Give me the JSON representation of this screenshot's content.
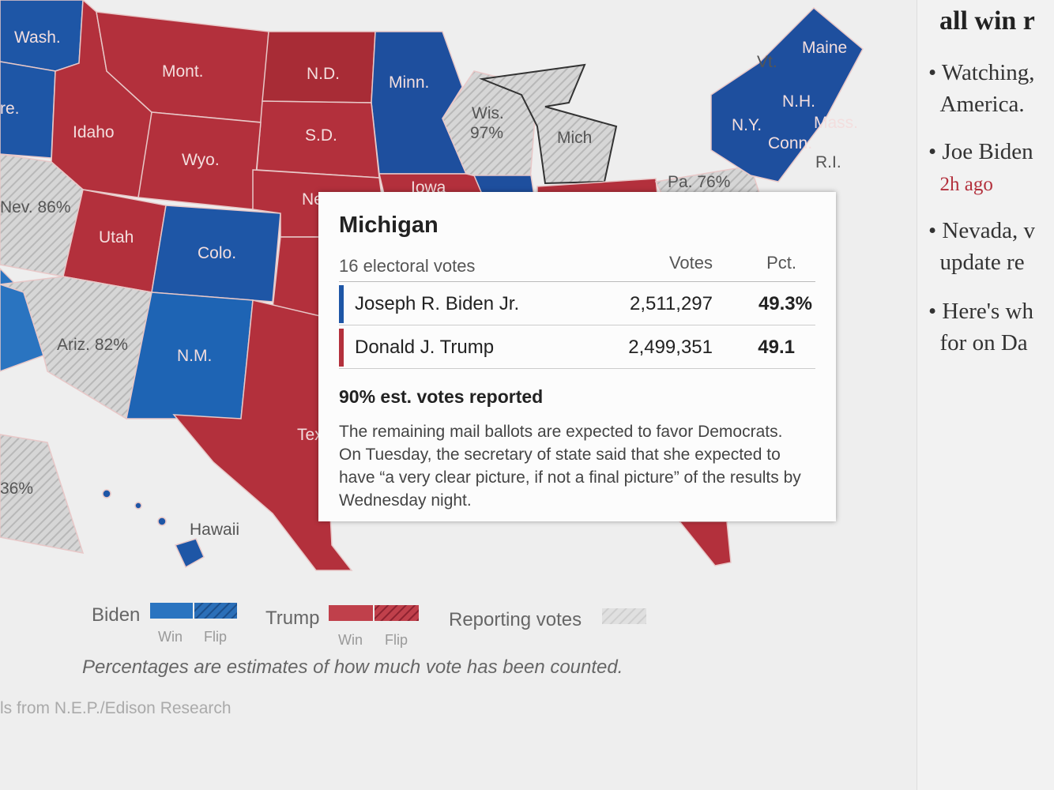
{
  "map": {
    "labels": [
      "Wash.",
      "Mont.",
      "N.D.",
      "Minn.",
      "re.",
      "Idaho",
      "S.D.",
      "Wis.",
      "97%",
      "Wyo.",
      "Mich",
      "Iowa",
      "Neb",
      "Nev. 86%",
      "Utah",
      "Colo.",
      "Ariz. 82%",
      "N.M.",
      "Tex",
      "36%",
      "Hawaii",
      "Vt.",
      "Maine",
      "N.H.",
      "Mass.",
      "N.Y.",
      "Conn.",
      "R.I.",
      "Pa. 76%"
    ]
  },
  "tooltip": {
    "state": "Michigan",
    "electoral_votes": "16 electoral votes",
    "columns": [
      "Votes",
      "Pct."
    ],
    "candidates": [
      {
        "name": "Joseph R. Biden Jr.",
        "votes": "2,511,297",
        "pct": "49.3%"
      },
      {
        "name": "Donald J. Trump",
        "votes": "2,499,351",
        "pct": "49.1"
      }
    ],
    "reported": "90% est. votes reported",
    "note": "The remaining mail ballots are expected to favor Democrats. On Tuesday, the secretary of state said that she expected to have “a very clear picture, if not a final picture” of the results by Wednesday night."
  },
  "legend": {
    "biden": "Biden",
    "biden_win": "Win",
    "biden_flip": "Flip",
    "trump": "Trump",
    "trump_win": "Win",
    "trump_flip": "Flip",
    "reporting": "Reporting votes"
  },
  "footnote": "Percentages are estimates of how much vote has been counted.",
  "source": "ls from N.E.P./Edison Research",
  "sidebar": {
    "title": "all win r",
    "items": [
      {
        "lines": [
          "Watching,",
          "America."
        ]
      },
      {
        "lines": [
          "Joe Biden"
        ],
        "time": "2h ago"
      },
      {
        "lines": [
          "Nevada, v",
          "update re"
        ]
      },
      {
        "lines": [
          "Here's wh",
          "for on Da"
        ]
      }
    ]
  }
}
